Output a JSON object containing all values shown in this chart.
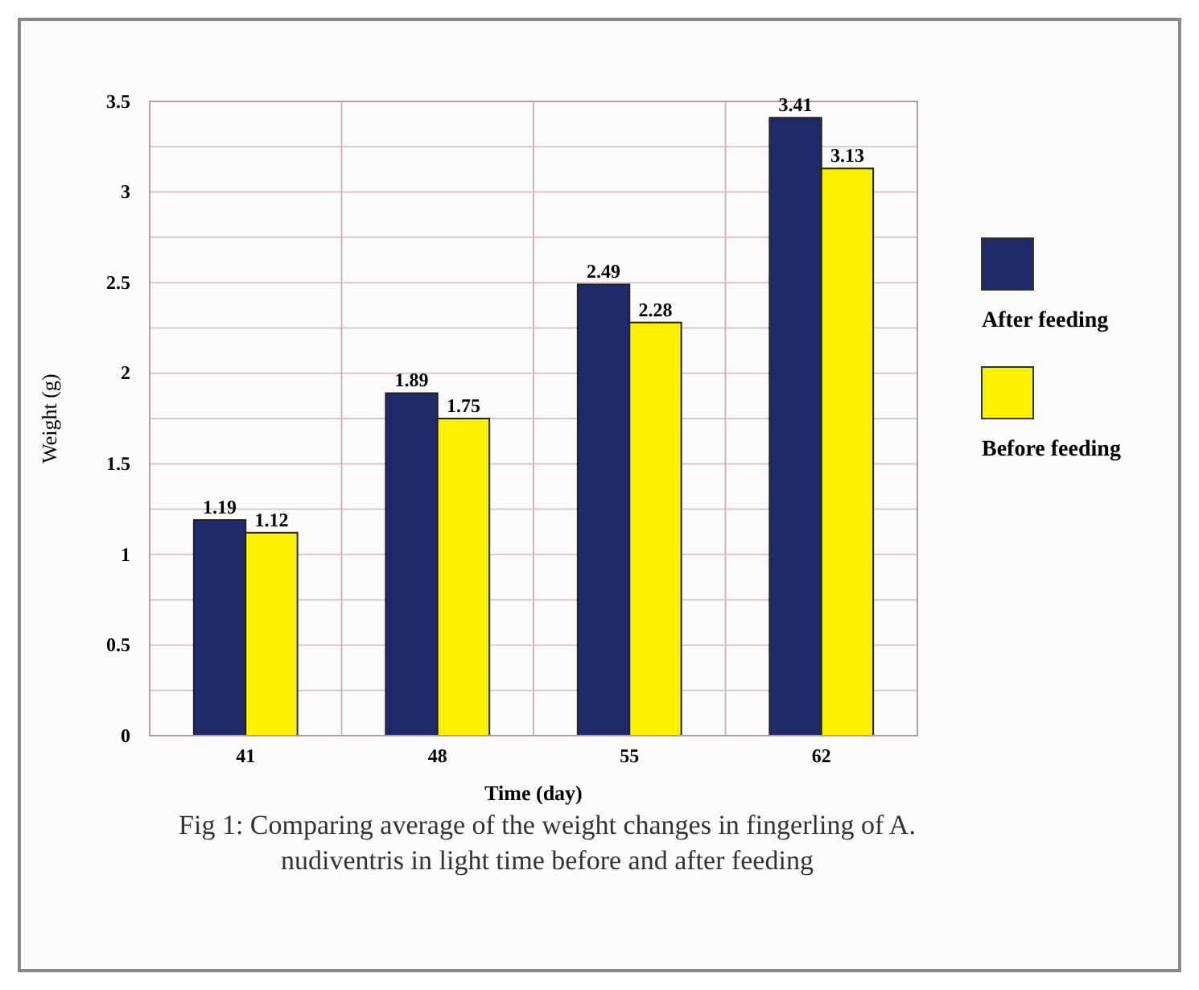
{
  "chart_data": {
    "type": "bar",
    "xlabel": "Time (day)",
    "ylabel": "Weight (g)",
    "categories": [
      "41",
      "48",
      "55",
      "62"
    ],
    "series": [
      {
        "name": "After feeding",
        "color": "#1f2a6b",
        "values": [
          1.19,
          1.89,
          2.49,
          3.41
        ]
      },
      {
        "name": "Before feeding",
        "color": "#fff200",
        "values": [
          1.12,
          1.75,
          2.28,
          3.13
        ]
      }
    ],
    "ylim": [
      0,
      3.5
    ],
    "yticks": [
      0,
      0.5,
      1,
      1.5,
      2,
      2.5,
      3,
      3.5
    ],
    "grid": true,
    "legend": "right",
    "data_labels": true,
    "annotations": [
      "Fig 1: Comparing average of the weight changes in fingerling of A. nudiventris in light time before and after feeding"
    ]
  }
}
